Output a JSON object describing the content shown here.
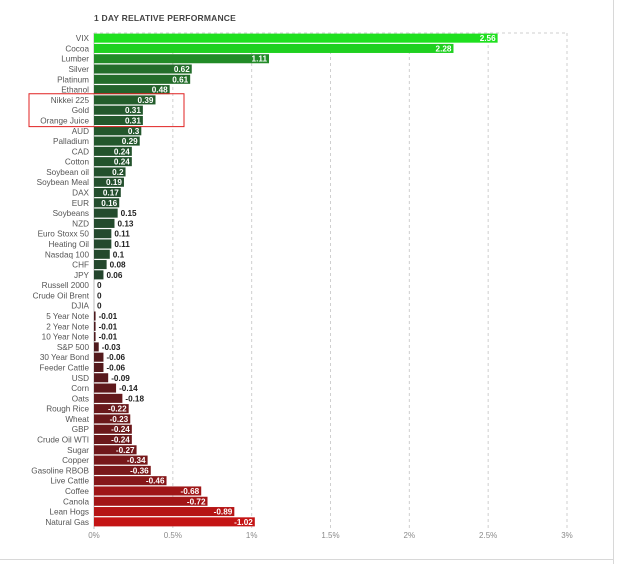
{
  "chart_data": {
    "type": "bar",
    "orientation": "horizontal",
    "title": "1 DAY RELATIVE PERFORMANCE",
    "xlim": [
      0,
      3
    ],
    "x_tick_labels": [
      "0%",
      "0.5%",
      "1%",
      "1.5%",
      "2%",
      "2.5%",
      "3%"
    ],
    "x_ticks": [
      0,
      0.5,
      1,
      1.5,
      2,
      2.5,
      3
    ],
    "grid": "vertical dashed",
    "categories": [
      "VIX",
      "Cocoa",
      "Lumber",
      "Silver",
      "Platinum",
      "Ethanol",
      "Nikkei 225",
      "Gold",
      "Orange Juice",
      "AUD",
      "Palladium",
      "CAD",
      "Cotton",
      "Soybean oil",
      "Soybean Meal",
      "DAX",
      "EUR",
      "Soybeans",
      "NZD",
      "Euro Stoxx 50",
      "Heating Oil",
      "Nasdaq 100",
      "CHF",
      "JPY",
      "Russell 2000",
      "Crude Oil Brent",
      "DJIA",
      "5 Year Note",
      "2 Year Note",
      "10 Year Note",
      "S&P 500",
      "30 Year Bond",
      "Feeder Cattle",
      "USD",
      "Corn",
      "Oats",
      "Rough Rice",
      "Wheat",
      "GBP",
      "Crude Oil WTI",
      "Sugar",
      "Copper",
      "Gasoline RBOB",
      "Live Cattle",
      "Coffee",
      "Canola",
      "Lean Hogs",
      "Natural Gas"
    ],
    "values": [
      2.56,
      2.28,
      1.11,
      0.62,
      0.61,
      0.48,
      0.39,
      0.31,
      0.31,
      0.3,
      0.29,
      0.24,
      0.24,
      0.2,
      0.19,
      0.17,
      0.16,
      0.15,
      0.13,
      0.11,
      0.11,
      0.1,
      0.08,
      0.06,
      0,
      0,
      0,
      -0.01,
      -0.01,
      -0.01,
      -0.03,
      -0.06,
      -0.06,
      -0.09,
      -0.14,
      -0.18,
      -0.22,
      -0.23,
      -0.24,
      -0.24,
      -0.27,
      -0.34,
      -0.36,
      -0.46,
      -0.68,
      -0.72,
      -0.89,
      -1.02
    ],
    "value_labels": [
      "2.56",
      "2.28",
      "1.11",
      "0.62",
      "0.61",
      "0.48",
      "0.39",
      "0.31",
      "0.31",
      "0.3",
      "0.29",
      "0.24",
      "0.24",
      "0.2",
      "0.19",
      "0.17",
      "0.16",
      "0.15",
      "0.13",
      "0.11",
      "0.11",
      "0.1",
      "0.08",
      "0.06",
      "0",
      "0",
      "0",
      "-0.01",
      "-0.01",
      "-0.01",
      "-0.03",
      "-0.06",
      "-0.06",
      "-0.09",
      "-0.14",
      "-0.18",
      "-0.22",
      "-0.23",
      "-0.24",
      "-0.24",
      "-0.27",
      "-0.34",
      "-0.36",
      "-0.46",
      "-0.68",
      "-0.72",
      "-0.89",
      "-1.02"
    ],
    "bar_magnitude_sign": "bars extend to the right for both gains and losses",
    "highlighted_categories": [
      "Nikkei 225",
      "Gold",
      "Orange Juice"
    ],
    "colors": {
      "positive_strong": "#1fe01f",
      "positive_dark": "#24402e",
      "negative_dark": "#4a1a1e",
      "negative_strong": "#c41414",
      "highlight_box": "#e02020",
      "grid": "#cfcfcf",
      "label": "#555555",
      "value_text": "#222222"
    }
  }
}
